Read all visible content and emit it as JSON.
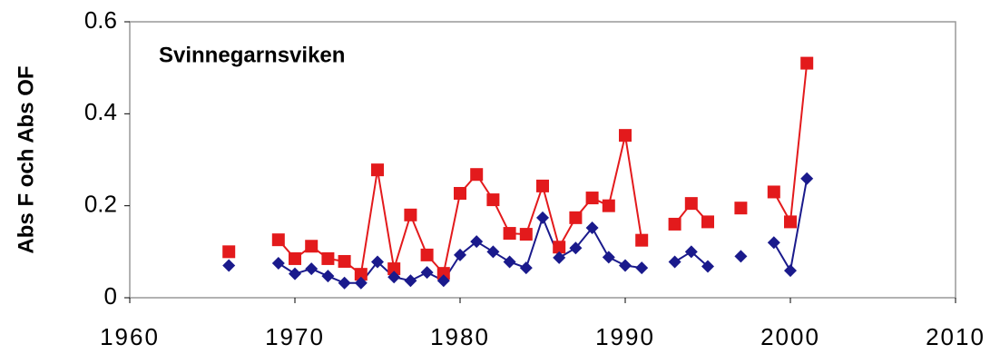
{
  "chart_data": {
    "type": "line",
    "annotation": "Svinnegarnsviken",
    "y_label": "Abs F och Abs OF",
    "x": [
      1966,
      1967,
      1968,
      1969,
      1970,
      1971,
      1972,
      1973,
      1974,
      1975,
      1976,
      1977,
      1978,
      1979,
      1980,
      1981,
      1982,
      1983,
      1984,
      1985,
      1986,
      1987,
      1988,
      1989,
      1990,
      1991,
      1992,
      1993,
      1994,
      1995,
      1996,
      1997,
      1998,
      1999,
      2000,
      2001
    ],
    "series": [
      {
        "color": "#e31a1c",
        "marker": "square",
        "values": [
          0.1,
          null,
          null,
          0.126,
          0.085,
          0.112,
          0.085,
          0.079,
          0.051,
          0.278,
          0.063,
          0.18,
          0.093,
          0.053,
          0.227,
          0.268,
          0.213,
          0.14,
          0.138,
          0.243,
          0.11,
          0.174,
          0.217,
          0.2,
          0.353,
          0.125,
          null,
          0.16,
          0.205,
          0.165,
          null,
          0.195,
          null,
          0.23,
          0.165,
          0.51
        ]
      },
      {
        "color": "#1a1a8c",
        "marker": "diamond",
        "values": [
          0.07,
          null,
          null,
          0.075,
          0.052,
          0.063,
          0.047,
          0.032,
          0.032,
          0.078,
          0.045,
          0.037,
          0.055,
          0.037,
          0.093,
          0.122,
          0.1,
          0.078,
          0.065,
          0.174,
          0.087,
          0.108,
          0.152,
          0.088,
          0.07,
          0.065,
          null,
          0.078,
          0.1,
          0.068,
          null,
          0.09,
          null,
          0.12,
          0.059,
          0.259
        ]
      }
    ],
    "xlim": [
      1960,
      2010
    ],
    "xticks": [
      1960,
      1970,
      1980,
      1990,
      2000,
      2010
    ],
    "ylim": [
      0,
      0.6
    ],
    "yticks": [
      0,
      0.2,
      0.4,
      0.6
    ]
  }
}
